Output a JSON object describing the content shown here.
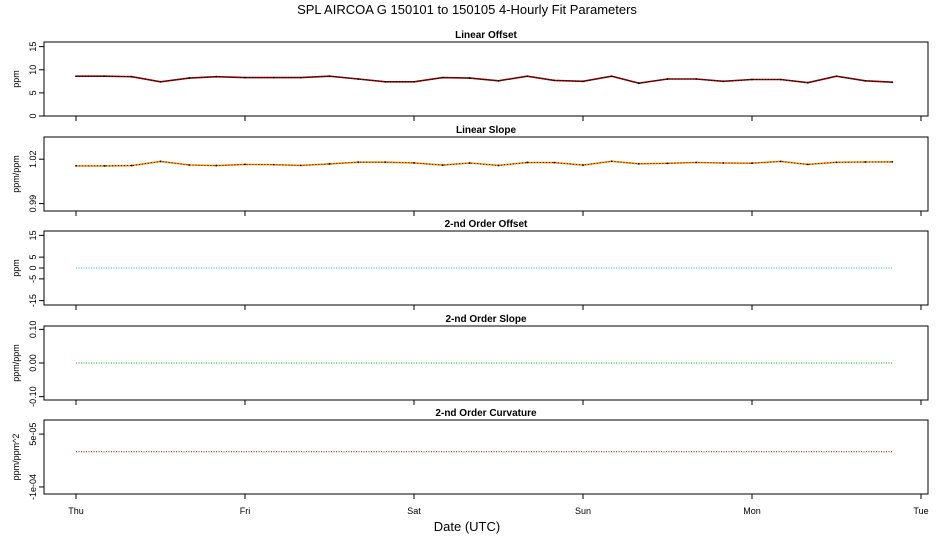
{
  "figure": {
    "title": "SPL   AIRCOA G   150101 to 150105   4-Hourly Fit Parameters",
    "xlabel": "Date (UTC)",
    "x_tick_labels": [
      "Thu",
      "Fri",
      "Sat",
      "Sun",
      "Mon",
      "Tue"
    ]
  },
  "chart_data": [
    {
      "type": "line",
      "title": "Linear Offset",
      "ylabel": "ppm",
      "ylim": [
        0,
        16
      ],
      "yticks": [
        "0",
        "5",
        "10",
        "15"
      ],
      "xlim": [
        0,
        5.1
      ],
      "color": "#8b0000",
      "marker_color": "#000000",
      "series": [
        {
          "x": [
            0,
            0.17,
            0.33,
            0.5,
            0.67,
            0.83,
            1.0,
            1.17,
            1.33,
            1.5,
            1.67,
            1.83,
            2.0,
            2.17,
            2.33,
            2.5,
            2.67,
            2.83,
            3.0,
            3.17,
            3.33,
            3.5,
            3.67,
            3.83,
            4.0,
            4.17,
            4.33,
            4.5,
            4.67,
            4.83
          ],
          "y": [
            8.6,
            8.6,
            8.5,
            7.4,
            8.2,
            8.5,
            8.3,
            8.3,
            8.3,
            8.6,
            8.0,
            7.4,
            7.4,
            8.3,
            8.2,
            7.6,
            8.6,
            7.7,
            7.5,
            8.6,
            7.1,
            8.0,
            8.0,
            7.5,
            7.9,
            7.9,
            7.2,
            8.6,
            7.6,
            7.3
          ]
        }
      ]
    },
    {
      "type": "line",
      "title": "Linear Slope",
      "ylabel": "ppm/ppm",
      "ylim": [
        0.985,
        1.035
      ],
      "yticks": [
        "0.99",
        "1.02"
      ],
      "yticks_values": [
        0.99,
        1.02
      ],
      "xlim": [
        0,
        5.1
      ],
      "color": "#ff8c00",
      "marker_color": "#000000",
      "series": [
        {
          "x": [
            0,
            0.17,
            0.33,
            0.5,
            0.67,
            0.83,
            1.0,
            1.17,
            1.33,
            1.5,
            1.67,
            1.83,
            2.0,
            2.17,
            2.33,
            2.5,
            2.67,
            2.83,
            3.0,
            3.17,
            3.33,
            3.5,
            3.67,
            3.83,
            4.0,
            4.17,
            4.33,
            4.5,
            4.67,
            4.83
          ],
          "y": [
            1.0155,
            1.0155,
            1.0157,
            1.0185,
            1.0161,
            1.0157,
            1.0165,
            1.0163,
            1.0158,
            1.0168,
            1.018,
            1.018,
            1.0175,
            1.016,
            1.0174,
            1.0158,
            1.0178,
            1.0177,
            1.016,
            1.0186,
            1.0169,
            1.0172,
            1.0178,
            1.0174,
            1.0173,
            1.0185,
            1.0165,
            1.0179,
            1.0181,
            1.0182
          ]
        }
      ]
    },
    {
      "type": "line",
      "title": "2-nd Order Offset",
      "ylabel": "ppm",
      "ylim": [
        -17,
        17
      ],
      "yticks": [
        "-15",
        "-5",
        "0",
        "5",
        "15"
      ],
      "yticks_values": [
        -15,
        -5,
        0,
        5,
        15
      ],
      "xlim": [
        0,
        5.1
      ],
      "color": "#00bfff",
      "series": [
        {
          "x": [
            0,
            4.83
          ],
          "y": [
            0,
            0
          ]
        }
      ]
    },
    {
      "type": "line",
      "title": "2-nd Order Slope",
      "ylabel": "ppm/ppm",
      "ylim": [
        -0.11,
        0.11
      ],
      "yticks": [
        "-0.10",
        "0.00",
        "0.10"
      ],
      "yticks_values": [
        -0.1,
        0.0,
        0.1
      ],
      "xlim": [
        0,
        5.1
      ],
      "color": "#00c000",
      "series": [
        {
          "x": [
            0,
            4.83
          ],
          "y": [
            0,
            0
          ]
        }
      ]
    },
    {
      "type": "line",
      "title": "2-nd Order Curvature",
      "ylabel": "ppm/ppm^2",
      "ylim": [
        -0.00012,
        9e-05
      ],
      "yticks": [
        "-1e-04",
        "5e-05"
      ],
      "yticks_values": [
        -0.0001,
        5e-05
      ],
      "xlim": [
        0,
        5.1
      ],
      "color": "#8b0000",
      "series": [
        {
          "x": [
            0,
            4.83
          ],
          "y": [
            0,
            0
          ]
        }
      ]
    }
  ]
}
